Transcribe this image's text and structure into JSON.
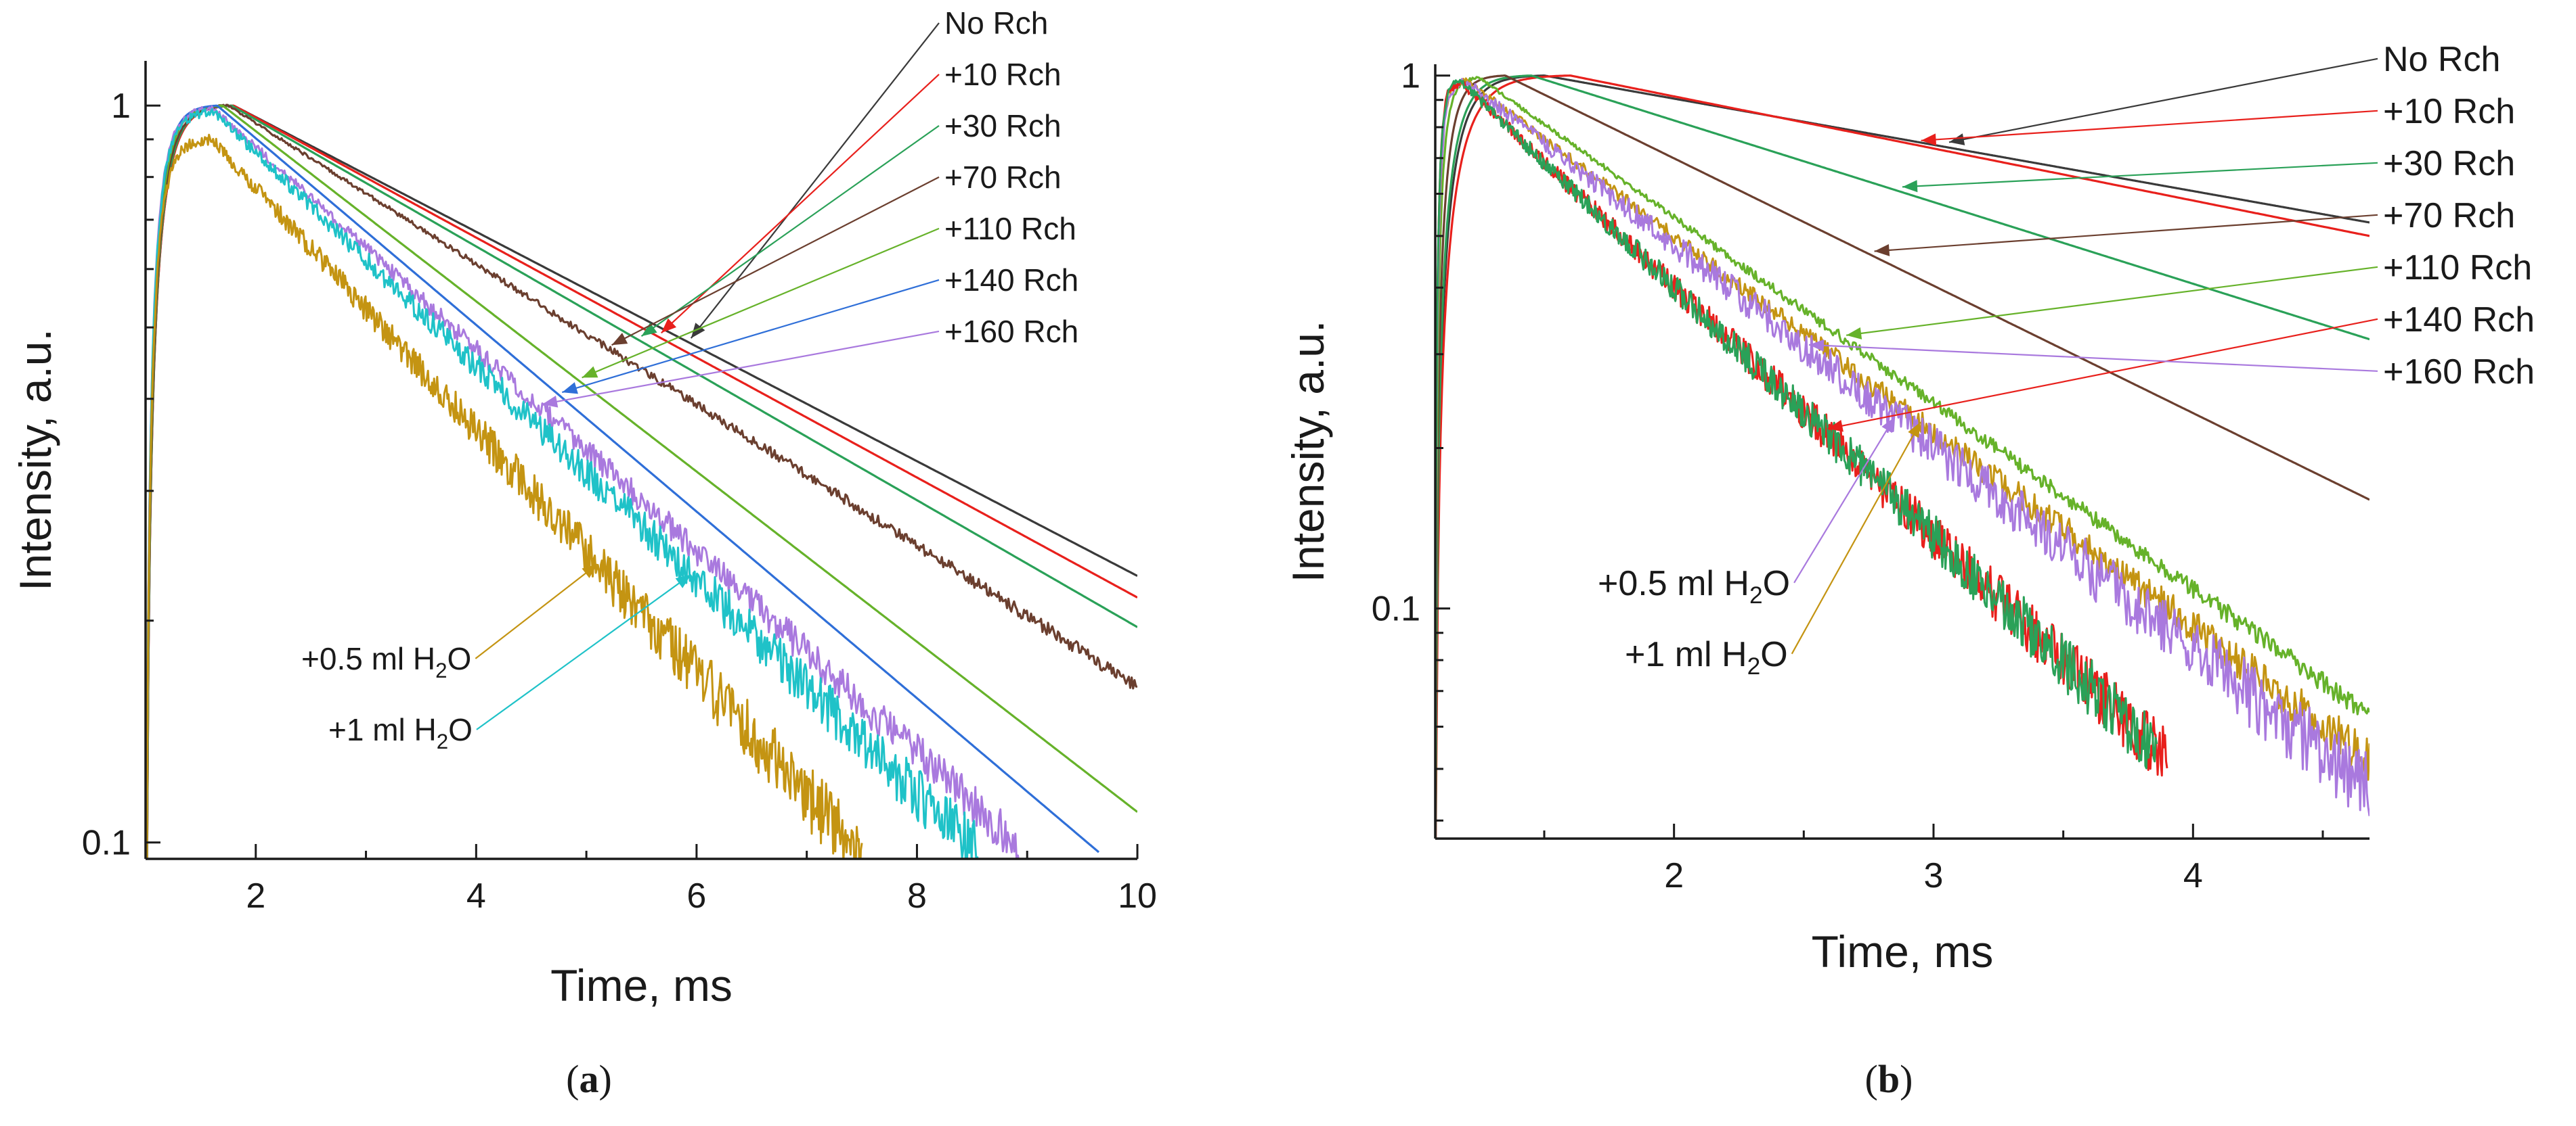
{
  "figure": {
    "panel_a_label": "a",
    "panel_b_label": "b"
  },
  "chart_data": [
    {
      "type": "line",
      "panel": "a",
      "xlabel": "Time, ms",
      "ylabel": "Intensity, a.u.",
      "yscale": "log",
      "xlim": [
        1,
        10
      ],
      "ylim": [
        0.095,
        1.15
      ],
      "xticks": [
        2,
        4,
        6,
        8,
        10
      ],
      "xtick_labels": [
        "2",
        "4",
        "6",
        "8",
        "10"
      ],
      "yticks": [
        0.1,
        1
      ],
      "ytick_labels": [
        "0.1",
        "1"
      ],
      "series": [
        {
          "name": "No Rch",
          "color": "#3a3a3a",
          "x_start": 1.0,
          "x_end": 10.0,
          "x_peak": 1.8,
          "y_peak": 1.0,
          "y_end": 0.23,
          "noise": 0.0
        },
        {
          "name": "+10 Rch",
          "color": "#e8201c",
          "x_start": 1.0,
          "x_end": 10.0,
          "x_peak": 1.8,
          "y_peak": 1.0,
          "y_end": 0.215,
          "noise": 0.0
        },
        {
          "name": "+30 Rch",
          "color": "#2aa158",
          "x_start": 1.0,
          "x_end": 10.0,
          "x_peak": 1.78,
          "y_peak": 1.0,
          "y_end": 0.196,
          "noise": 0.0
        },
        {
          "name": "+70 Rch",
          "color": "#6b3f2f",
          "x_start": 1.0,
          "x_end": 10.0,
          "x_peak": 1.75,
          "y_peak": 1.0,
          "y_end": 0.163,
          "noise": 0.01
        },
        {
          "name": "+110 Rch",
          "color": "#66b22a",
          "x_start": 1.0,
          "x_end": 10.0,
          "x_peak": 1.7,
          "y_peak": 1.0,
          "y_end": 0.11,
          "noise": 0.0
        },
        {
          "name": "+140 Rch",
          "color": "#2f6fd8",
          "x_start": 1.0,
          "x_end": 9.65,
          "x_peak": 1.65,
          "y_peak": 1.0,
          "y_end": 0.097,
          "noise": 0.0
        },
        {
          "name": "+160 Rch",
          "color": "#a979de",
          "x_start": 1.0,
          "x_end": 8.95,
          "x_peak": 1.62,
          "y_peak": 0.99,
          "y_end": 0.098,
          "noise": 0.03
        },
        {
          "name": "+1 ml H2O",
          "color": "#1fc2c8",
          "x_start": 1.0,
          "x_end": 8.55,
          "x_peak": 1.62,
          "y_peak": 0.98,
          "y_end": 0.097,
          "noise": 0.04
        },
        {
          "name": "+0.5 ml H2O",
          "color": "#c49412",
          "x_start": 1.0,
          "x_end": 7.5,
          "x_peak": 1.6,
          "y_peak": 0.9,
          "y_end": 0.096,
          "noise": 0.05
        }
      ],
      "legend_labels": [
        "No Rch",
        "+10 Rch",
        "+30 Rch",
        "+70 Rch",
        "+110 Rch",
        "+140 Rch",
        "+160 Rch"
      ],
      "annotations": [
        {
          "text_main": "+0.5 ml H",
          "text_sub": "2",
          "text_tail": "O",
          "target_series": "+0.5 ml H2O",
          "target_x": 5.1
        },
        {
          "text_main": "+1 ml H",
          "text_sub": "2",
          "text_tail": "O",
          "target_series": "+1 ml H2O",
          "target_x": 5.95
        }
      ]
    },
    {
      "type": "line",
      "panel": "b",
      "xlabel": "Time, ms",
      "ylabel": "Intensity, a.u.",
      "yscale": "log",
      "xlim": [
        1.08,
        4.68
      ],
      "ylim": [
        0.037,
        1.05
      ],
      "xticks": [
        2,
        3,
        4
      ],
      "xtick_labels": [
        "2",
        "3",
        "4"
      ],
      "yticks": [
        0.1,
        1
      ],
      "ytick_labels": [
        "0.1",
        "1"
      ],
      "series": [
        {
          "name": "No Rch",
          "color": "#3a3a3a",
          "x_start": 1.08,
          "x_end": 4.68,
          "x_peak": 1.5,
          "y_peak": 1.0,
          "y_end": 0.53,
          "noise": 0.0
        },
        {
          "name": "+10 Rch",
          "color": "#e8201c",
          "x_start": 1.08,
          "x_end": 4.68,
          "x_peak": 1.6,
          "y_peak": 1.0,
          "y_end": 0.5,
          "noise": 0.0
        },
        {
          "name": "+30 Rch",
          "color": "#2aa158",
          "x_start": 1.08,
          "x_end": 4.68,
          "x_peak": 1.45,
          "y_peak": 1.0,
          "y_end": 0.32,
          "noise": 0.0
        },
        {
          "name": "+70 Rch",
          "color": "#6b3f2f",
          "x_start": 1.08,
          "x_end": 4.68,
          "x_peak": 1.35,
          "y_peak": 1.0,
          "y_end": 0.16,
          "noise": 0.0
        },
        {
          "name": "+110 Rch",
          "color": "#66b22a",
          "x_start": 1.08,
          "x_end": 4.68,
          "x_peak": 1.25,
          "y_peak": 0.99,
          "y_end": 0.063,
          "noise": 0.02
        },
        {
          "name": "+0.5 ml H2O",
          "color": "#c49412",
          "x_start": 1.08,
          "x_end": 4.68,
          "x_peak": 1.2,
          "y_peak": 0.98,
          "y_end": 0.052,
          "noise": 0.04
        },
        {
          "name": "+160 Rch",
          "color": "#a979de",
          "x_start": 1.08,
          "x_end": 4.68,
          "x_peak": 1.2,
          "y_peak": 0.97,
          "y_end": 0.046,
          "noise": 0.07
        },
        {
          "name": "+140 Rch",
          "color": "#e8201c",
          "x_start": 1.08,
          "x_end": 3.9,
          "x_peak": 1.18,
          "y_peak": 0.97,
          "y_end": 0.052,
          "noise": 0.06
        },
        {
          "name": "+1 ml H2O",
          "color": "#2aa158",
          "x_start": 1.08,
          "x_end": 3.86,
          "x_peak": 1.18,
          "y_peak": 0.97,
          "y_end": 0.054,
          "noise": 0.06
        }
      ],
      "legend_labels": [
        "No Rch",
        "+10 Rch",
        "+30 Rch",
        "+70 Rch",
        "+110 Rch",
        "+140 Rch",
        "+160 Rch"
      ],
      "annotations": [
        {
          "text_main": "+0.5 ml H",
          "text_sub": "2",
          "text_tail": "O",
          "target_series": "+160 Rch",
          "target_x": 2.85
        },
        {
          "text_main": "+1 ml H",
          "text_sub": "2",
          "text_tail": "O",
          "target_series": "+0.5 ml H2O",
          "target_x": 2.95
        }
      ]
    }
  ]
}
